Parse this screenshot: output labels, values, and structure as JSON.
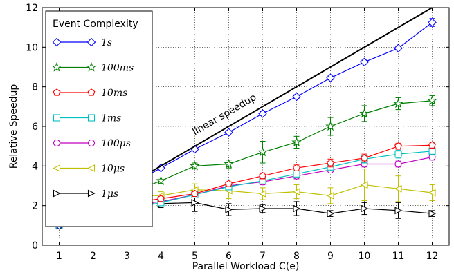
{
  "chart_data": {
    "type": "line",
    "xlabel": "Parallel Workload C(e)",
    "ylabel": "Relative Speedup",
    "x": [
      1,
      2,
      3,
      4,
      5,
      6,
      7,
      8,
      9,
      10,
      11,
      12
    ],
    "xlim": [
      0.5,
      12.5
    ],
    "ylim": [
      0,
      12
    ],
    "yticks": [
      0,
      2,
      4,
      6,
      8,
      10,
      12
    ],
    "grid": true,
    "legend": {
      "title": "Event Complexity",
      "position": "top-left"
    },
    "annotation": {
      "text": "linear speedup"
    },
    "reference_line": {
      "name": "linear speedup",
      "x": [
        1,
        12
      ],
      "y": [
        1,
        12
      ],
      "color": "#000000"
    },
    "series": [
      {
        "name": "1s",
        "color": "#0000ff",
        "marker": "diamond",
        "values": [
          1.0,
          1.95,
          2.95,
          3.9,
          4.85,
          5.7,
          6.65,
          7.5,
          8.45,
          9.25,
          9.95,
          11.25
        ],
        "errors": [
          0.05,
          0.05,
          0.05,
          0.05,
          0.05,
          0.05,
          0.1,
          0.1,
          0.1,
          0.1,
          0.1,
          0.2
        ]
      },
      {
        "name": "100ms",
        "color": "#008000",
        "marker": "star",
        "values": [
          1.0,
          2.0,
          2.6,
          3.25,
          4.0,
          4.1,
          4.7,
          5.2,
          6.0,
          6.65,
          7.15,
          7.3
        ],
        "errors": [
          0.05,
          0.1,
          0.1,
          0.15,
          0.15,
          0.2,
          0.55,
          0.3,
          0.45,
          0.4,
          0.3,
          0.25
        ]
      },
      {
        "name": "10ms",
        "color": "#ff0000",
        "marker": "pentagon",
        "values": [
          1.0,
          1.7,
          2.1,
          2.35,
          2.6,
          3.1,
          3.5,
          3.9,
          4.15,
          4.4,
          5.0,
          5.05
        ],
        "errors": [
          0.05,
          0.1,
          0.1,
          0.1,
          0.1,
          0.1,
          0.15,
          0.15,
          0.2,
          0.2,
          0.15,
          0.15
        ]
      },
      {
        "name": "1ms",
        "color": "#00bfbf",
        "marker": "square",
        "values": [
          1.0,
          1.4,
          1.8,
          2.15,
          2.55,
          2.95,
          3.25,
          3.6,
          3.95,
          4.35,
          4.6,
          4.75
        ],
        "errors": [
          0.05,
          0.1,
          0.1,
          0.1,
          0.1,
          0.15,
          0.15,
          0.15,
          0.2,
          0.2,
          0.2,
          0.2
        ]
      },
      {
        "name": "100μs",
        "color": "#bf00bf",
        "marker": "circle",
        "values": [
          1.0,
          1.6,
          2.0,
          2.2,
          2.55,
          3.0,
          3.2,
          3.5,
          3.8,
          4.1,
          4.1,
          4.45
        ],
        "errors": [
          0.05,
          0.1,
          0.1,
          0.1,
          0.1,
          0.1,
          0.15,
          0.15,
          0.15,
          0.15,
          0.15,
          0.15
        ]
      },
      {
        "name": "10μs",
        "color": "#bfbf00",
        "marker": "triangle-left",
        "values": [
          1.0,
          2.0,
          2.5,
          2.5,
          2.8,
          2.75,
          2.6,
          2.7,
          2.5,
          3.05,
          2.85,
          2.65
        ],
        "errors": [
          0.05,
          0.1,
          0.2,
          0.2,
          0.3,
          0.4,
          0.3,
          0.35,
          0.4,
          0.8,
          0.65,
          0.4
        ]
      },
      {
        "name": "1μs",
        "color": "#000000",
        "marker": "triangle-right",
        "values": [
          1.0,
          2.0,
          2.05,
          2.1,
          2.15,
          1.8,
          1.85,
          1.85,
          1.6,
          1.85,
          1.75,
          1.6
        ],
        "errors": [
          0.05,
          0.1,
          0.15,
          0.2,
          0.45,
          0.3,
          0.2,
          0.35,
          0.15,
          0.3,
          0.4,
          0.15
        ]
      }
    ]
  }
}
